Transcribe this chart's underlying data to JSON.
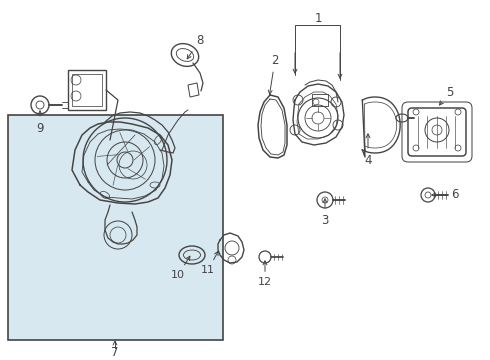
{
  "bg_color": "#ffffff",
  "box_bg": "#d8e8f0",
  "box_border": "#444444",
  "lc": "#444444",
  "lw": 0.9,
  "figsize": [
    4.9,
    3.6
  ],
  "dpi": 100,
  "label_fs": 8.5
}
